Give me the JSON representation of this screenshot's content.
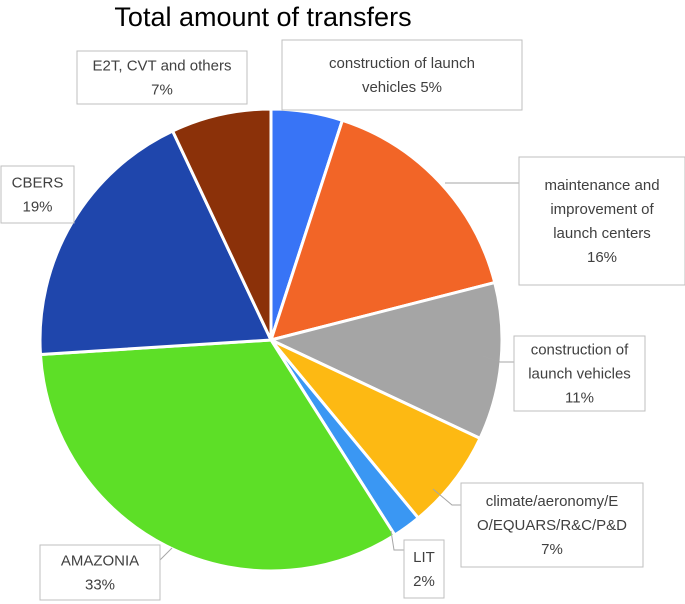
{
  "chart_data": {
    "type": "pie",
    "title": "Total amount of transfers",
    "start_angle_deg": 0,
    "direction": "clockwise",
    "slices": [
      {
        "label": "construction of launch vehicles",
        "value": 5,
        "value_label": "5%",
        "color": "#3874f6"
      },
      {
        "label": "maintenance and improvement of launch centers",
        "value": 16,
        "value_label": "16%",
        "color": "#f26527"
      },
      {
        "label": "construction of launch vehicles",
        "value": 11,
        "value_label": "11%",
        "color": "#a5a5a5"
      },
      {
        "label": "climate/aeronomy/EO/EQUARS/R&C/P&D",
        "value": 7,
        "value_label": "7%",
        "color": "#fdb913"
      },
      {
        "label": "LIT",
        "value": 2,
        "value_label": "2%",
        "color": "#3a97f3"
      },
      {
        "label": "AMAZONIA",
        "value": 33,
        "value_label": "33%",
        "color": "#5ddf27"
      },
      {
        "label": "CBERS",
        "value": 19,
        "value_label": "19%",
        "color": "#1f46ac"
      },
      {
        "label": "E2T, CVT and others",
        "value": 7,
        "value_label": "7%",
        "color": "#8b3109"
      }
    ],
    "callouts": [
      {
        "lines": [
          "construction of launch",
          "vehicles 5%"
        ]
      },
      {
        "lines": [
          "maintenance and",
          "improvement of",
          "launch centers",
          "16%"
        ]
      },
      {
        "lines": [
          "construction of",
          "launch vehicles",
          "11%"
        ]
      },
      {
        "lines": [
          "climate/aeronomy/E",
          "O/EQUARS/R&C/P&D",
          "7%"
        ]
      },
      {
        "lines": [
          "LIT",
          "2%"
        ]
      },
      {
        "lines": [
          "AMAZONIA",
          "33%"
        ]
      },
      {
        "lines": [
          "CBERS",
          "19%"
        ]
      },
      {
        "lines": [
          "E2T, CVT and others",
          "7%"
        ]
      }
    ]
  }
}
